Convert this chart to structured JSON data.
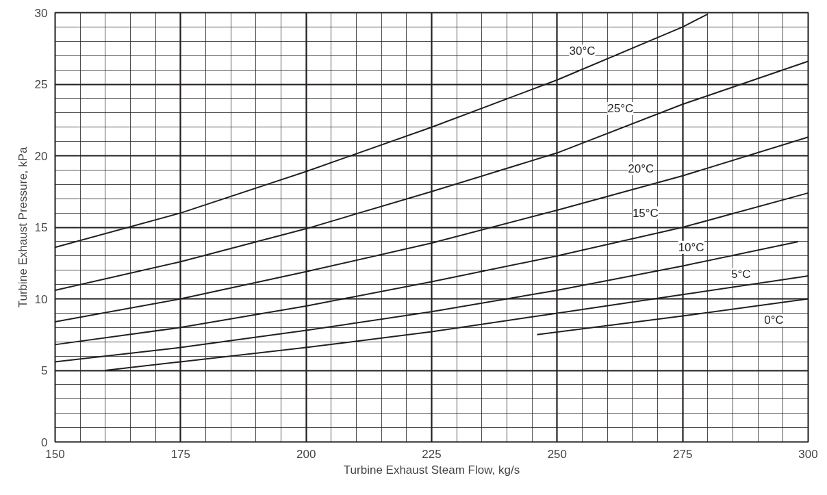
{
  "chart_data": {
    "type": "line",
    "xlabel": "Turbine Exhaust Steam Flow, kg/s",
    "ylabel": "Turbine Exhaust Pressure, kPa",
    "xlim": [
      150,
      300
    ],
    "ylim": [
      0,
      30
    ],
    "xticks": [
      150,
      175,
      200,
      225,
      250,
      275,
      300
    ],
    "yticks": [
      0,
      5,
      10,
      15,
      20,
      25,
      30
    ],
    "grid": true,
    "marker": "none",
    "line_style": "solid",
    "series": [
      {
        "color": "#231f20",
        "x": [
          150,
          175,
          200,
          225,
          250,
          275,
          280
        ],
        "values": [
          13.6,
          16.0,
          18.9,
          22.0,
          25.3,
          29.0,
          29.9
        ]
      },
      {
        "color": "#231f20",
        "x": [
          150,
          175,
          200,
          225,
          250,
          275,
          300
        ],
        "values": [
          10.6,
          12.6,
          14.9,
          17.5,
          20.2,
          23.6,
          26.6
        ]
      },
      {
        "color": "#231f20",
        "x": [
          150,
          175,
          200,
          225,
          250,
          275,
          300
        ],
        "values": [
          8.4,
          10.0,
          11.9,
          13.9,
          16.2,
          18.6,
          21.3
        ]
      },
      {
        "color": "#231f20",
        "x": [
          150,
          175,
          200,
          225,
          250,
          275,
          300
        ],
        "values": [
          6.8,
          8.0,
          9.5,
          11.2,
          13.0,
          15.0,
          17.4
        ]
      },
      {
        "color": "#231f20",
        "x": [
          150,
          175,
          200,
          225,
          250,
          275,
          298
        ],
        "values": [
          5.6,
          6.6,
          7.8,
          9.1,
          10.6,
          12.3,
          14.0
        ]
      },
      {
        "color": "#231f20",
        "x": [
          160,
          175,
          200,
          225,
          250,
          275,
          300
        ],
        "values": [
          5.0,
          5.6,
          6.6,
          7.7,
          9.0,
          10.3,
          11.6
        ]
      },
      {
        "color": "#231f20",
        "x": [
          246,
          275,
          300
        ],
        "values": [
          7.5,
          8.8,
          10.0
        ]
      }
    ],
    "annotations": [
      {
        "text": "30°C",
        "x": 255,
        "y": 27.3
      },
      {
        "text": "25°C",
        "x": 262.6,
        "y": 23.3
      },
      {
        "text": "20°C",
        "x": 266.7,
        "y": 19.1
      },
      {
        "text": "15°C",
        "x": 267.6,
        "y": 16.0
      },
      {
        "text": "10°C",
        "x": 276.7,
        "y": 13.6
      },
      {
        "text": "5°C",
        "x": 286.6,
        "y": 11.7
      },
      {
        "text": "0°C",
        "x": 293.2,
        "y": 8.5
      }
    ]
  }
}
